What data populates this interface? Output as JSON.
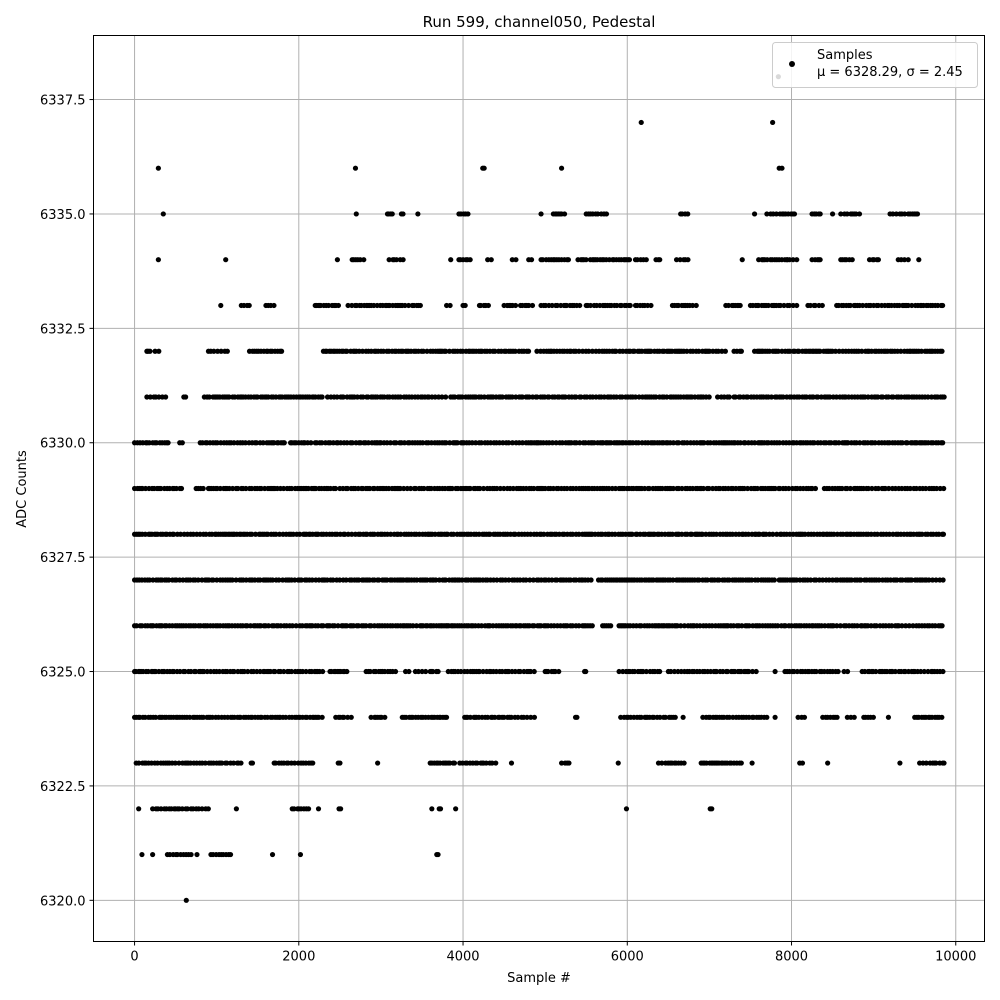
{
  "chart_data": {
    "type": "scatter",
    "title": "Run 599, channel050, Pedestal",
    "xlabel": "Sample #",
    "ylabel": "ADC Counts",
    "xlim": [
      -500,
      10350
    ],
    "ylim": [
      6319.1,
      6338.9
    ],
    "xticks": [
      0,
      2000,
      4000,
      6000,
      8000,
      10000
    ],
    "xtick_labels": [
      "0",
      "2000",
      "4000",
      "6000",
      "8000",
      "10000"
    ],
    "yticks": [
      6320.0,
      6322.5,
      6325.0,
      6327.5,
      6330.0,
      6332.5,
      6335.0,
      6337.5
    ],
    "ytick_labels": [
      "6320.0",
      "6322.5",
      "6325.0",
      "6327.5",
      "6330.0",
      "6332.5",
      "6335.0",
      "6337.5"
    ],
    "grid": true,
    "marker_color": "#000000",
    "grid_color": "#b0b0b0",
    "legend": {
      "placement": "top-right",
      "entries": [
        {
          "label": "Samples",
          "stats": "μ = 6328.29, σ = 2.45"
        }
      ]
    },
    "series": [
      {
        "name": "Samples",
        "mu": 6328.29,
        "sigma": 2.45,
        "level_ranges": [
          {
            "y": 6320,
            "x": [
              [
                630,
                630
              ]
            ]
          },
          {
            "y": 6321,
            "x": [
              [
                90,
                110
              ],
              [
                220,
                240
              ],
              [
                400,
                700
              ],
              [
                760,
                780
              ],
              [
                930,
                1200
              ],
              [
                1680,
                1700
              ],
              [
                2020,
                2040
              ],
              [
                3680,
                3720
              ]
            ]
          },
          {
            "y": 6322,
            "x": [
              [
                50,
                60
              ],
              [
                220,
                900
              ],
              [
                1240,
                1260
              ],
              [
                1920,
                2160
              ],
              [
                2240,
                2260
              ],
              [
                2490,
                2510
              ],
              [
                3620,
                3640
              ],
              [
                3710,
                3730
              ],
              [
                3910,
                3930
              ],
              [
                5990,
                6010
              ],
              [
                7010,
                7030
              ]
            ]
          },
          {
            "y": 6323,
            "x": [
              [
                20,
                1300
              ],
              [
                1420,
                1440
              ],
              [
                1700,
                2200
              ],
              [
                2480,
                2520
              ],
              [
                2960,
                2980
              ],
              [
                3600,
                3900
              ],
              [
                3960,
                4400
              ],
              [
                4590,
                4610
              ],
              [
                5200,
                5300
              ],
              [
                5890,
                5920
              ],
              [
                6380,
                6700
              ],
              [
                6900,
                7400
              ],
              [
                7520,
                7540
              ],
              [
                8100,
                8150
              ],
              [
                8440,
                8460
              ],
              [
                9320,
                9340
              ],
              [
                9560,
                9860
              ]
            ]
          },
          {
            "y": 6324,
            "x": [
              [
                0,
                2300
              ],
              [
                2450,
                2650
              ],
              [
                2880,
                3050
              ],
              [
                3260,
                3800
              ],
              [
                4020,
                4900
              ],
              [
                5370,
                5410
              ],
              [
                5920,
                6600
              ],
              [
                6680,
                6700
              ],
              [
                6920,
                7700
              ],
              [
                7800,
                7820
              ],
              [
                8080,
                8160
              ],
              [
                8380,
                8600
              ],
              [
                8680,
                8780
              ],
              [
                8880,
                9000
              ],
              [
                9180,
                9200
              ],
              [
                9500,
                9860
              ]
            ]
          },
          {
            "y": 6325,
            "x": [
              [
                0,
                2300
              ],
              [
                2380,
                2600
              ],
              [
                2820,
                3200
              ],
              [
                3300,
                3350
              ],
              [
                3420,
                3550
              ],
              [
                3600,
                3700
              ],
              [
                3820,
                4900
              ],
              [
                5000,
                5200
              ],
              [
                5480,
                5500
              ],
              [
                5900,
                6400
              ],
              [
                6500,
                6900
              ],
              [
                6920,
                7600
              ],
              [
                7800,
                7820
              ],
              [
                7920,
                8600
              ],
              [
                8640,
                8700
              ],
              [
                8860,
                9860
              ]
            ]
          },
          {
            "y": 6326,
            "x": [
              [
                0,
                5600
              ],
              [
                5700,
                5800
              ],
              [
                5900,
                9860
              ]
            ]
          },
          {
            "y": 6327,
            "x": [
              [
                0,
                5570
              ],
              [
                5650,
                7800
              ],
              [
                7850,
                9860
              ]
            ]
          },
          {
            "y": 6328,
            "x": [
              [
                0,
                7780
              ],
              [
                7820,
                9860
              ]
            ]
          },
          {
            "y": 6329,
            "x": [
              [
                0,
                600
              ],
              [
                750,
                850
              ],
              [
                900,
                2450
              ],
              [
                2500,
                8300
              ],
              [
                8400,
                9860
              ]
            ]
          },
          {
            "y": 6330,
            "x": [
              [
                0,
                450
              ],
              [
                550,
                600
              ],
              [
                800,
                1850
              ],
              [
                1900,
                2150
              ],
              [
                2200,
                9860
              ]
            ]
          },
          {
            "y": 6331,
            "x": [
              [
                150,
                400
              ],
              [
                600,
                650
              ],
              [
                850,
                2300
              ],
              [
                2350,
                3800
              ],
              [
                3850,
                7000
              ],
              [
                7100,
                7250
              ],
              [
                7300,
                9860
              ]
            ]
          },
          {
            "y": 6332,
            "x": [
              [
                150,
                200
              ],
              [
                250,
                300
              ],
              [
                900,
                1150
              ],
              [
                1400,
                1800
              ],
              [
                2300,
                4800
              ],
              [
                4900,
                7200
              ],
              [
                7300,
                7400
              ],
              [
                7550,
                9860
              ]
            ]
          },
          {
            "y": 6333,
            "x": [
              [
                1050,
                1070
              ],
              [
                1300,
                1420
              ],
              [
                1600,
                1700
              ],
              [
                2200,
                2500
              ],
              [
                2600,
                3500
              ],
              [
                3800,
                3850
              ],
              [
                4000,
                4050
              ],
              [
                4200,
                4350
              ],
              [
                4500,
                4650
              ],
              [
                4700,
                4850
              ],
              [
                4950,
                5450
              ],
              [
                5500,
                6050
              ],
              [
                6100,
                6300
              ],
              [
                6550,
                6850
              ],
              [
                7200,
                7400
              ],
              [
                7500,
                8100
              ],
              [
                8200,
                8400
              ],
              [
                8550,
                9850
              ]
            ]
          },
          {
            "y": 6334,
            "x": [
              [
                290,
                300
              ],
              [
                1110,
                1130
              ],
              [
                2470,
                2490
              ],
              [
                2650,
                2800
              ],
              [
                3100,
                3300
              ],
              [
                3850,
                3870
              ],
              [
                3950,
                4100
              ],
              [
                4300,
                4350
              ],
              [
                4600,
                4650
              ],
              [
                4800,
                4850
              ],
              [
                4950,
                5300
              ],
              [
                5400,
                5500
              ],
              [
                5550,
                6050
              ],
              [
                6100,
                6250
              ],
              [
                6350,
                6400
              ],
              [
                6600,
                6750
              ],
              [
                7400,
                7420
              ],
              [
                7600,
                7950
              ],
              [
                7950,
                8100
              ],
              [
                8250,
                8350
              ],
              [
                8600,
                8750
              ],
              [
                8950,
                9100
              ],
              [
                9300,
                9450
              ],
              [
                9550,
                9570
              ]
            ]
          },
          {
            "y": 6335,
            "x": [
              [
                350,
                370
              ],
              [
                2700,
                2720
              ],
              [
                3080,
                3150
              ],
              [
                3250,
                3270
              ],
              [
                3450,
                3470
              ],
              [
                3950,
                4080
              ],
              [
                4950,
                4970
              ],
              [
                5100,
                5250
              ],
              [
                5500,
                5750
              ],
              [
                6650,
                6750
              ],
              [
                7550,
                7570
              ],
              [
                7700,
                8050
              ],
              [
                8250,
                8350
              ],
              [
                8500,
                8520
              ],
              [
                8600,
                8850
              ],
              [
                9200,
                9550
              ]
            ]
          },
          {
            "y": 6336,
            "x": [
              [
                290,
                300
              ],
              [
                2690,
                2710
              ],
              [
                4240,
                4260
              ],
              [
                5200,
                5220
              ],
              [
                7850,
                7920
              ]
            ]
          },
          {
            "y": 6337,
            "x": [
              [
                6170,
                6190
              ],
              [
                7770,
                7790
              ]
            ]
          },
          {
            "y": 6338,
            "x": [
              [
                7840,
                7860
              ]
            ]
          }
        ]
      }
    ]
  }
}
